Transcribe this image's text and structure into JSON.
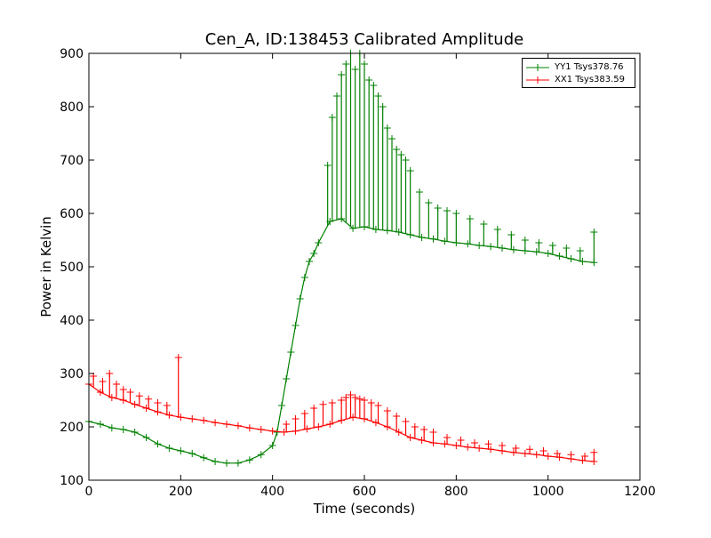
{
  "chart_data": {
    "type": "line",
    "title": "Cen_A, ID:138453 Calibrated Amplitude",
    "xlabel": "Time (seconds)",
    "ylabel": "Power in Kelvin",
    "xlim": [
      0,
      1200
    ],
    "ylim": [
      100,
      900
    ],
    "xticks": [
      0,
      200,
      400,
      600,
      800,
      1000,
      1200
    ],
    "yticks": [
      100,
      200,
      300,
      400,
      500,
      600,
      700,
      800,
      900
    ],
    "grid": false,
    "legend_placement": "top-right",
    "marker": "+",
    "series": [
      {
        "name": "YY1 Tsys378.76",
        "color": "#008000",
        "x": [
          0,
          25,
          50,
          75,
          100,
          125,
          150,
          175,
          200,
          225,
          250,
          275,
          300,
          325,
          350,
          375,
          400,
          410,
          420,
          430,
          440,
          450,
          460,
          470,
          480,
          490,
          500,
          525,
          550,
          575,
          600,
          625,
          650,
          675,
          700,
          725,
          750,
          775,
          800,
          825,
          850,
          875,
          900,
          925,
          950,
          975,
          1000,
          1025,
          1050,
          1075,
          1100
        ],
        "y": [
          210,
          205,
          198,
          195,
          190,
          180,
          168,
          160,
          155,
          150,
          142,
          135,
          132,
          132,
          138,
          148,
          165,
          190,
          240,
          290,
          340,
          390,
          440,
          480,
          510,
          525,
          545,
          585,
          590,
          572,
          575,
          570,
          568,
          565,
          560,
          555,
          552,
          548,
          545,
          543,
          540,
          538,
          535,
          532,
          530,
          528,
          525,
          520,
          515,
          510,
          508
        ],
        "spikes": [
          [
            520,
            690
          ],
          [
            530,
            780
          ],
          [
            540,
            820
          ],
          [
            550,
            860
          ],
          [
            560,
            880
          ],
          [
            570,
            900
          ],
          [
            580,
            870
          ],
          [
            590,
            900
          ],
          [
            600,
            880
          ],
          [
            610,
            850
          ],
          [
            620,
            840
          ],
          [
            630,
            820
          ],
          [
            640,
            800
          ],
          [
            650,
            760
          ],
          [
            660,
            740
          ],
          [
            670,
            720
          ],
          [
            680,
            710
          ],
          [
            690,
            700
          ],
          [
            700,
            680
          ],
          [
            720,
            640
          ],
          [
            740,
            620
          ],
          [
            760,
            610
          ],
          [
            780,
            605
          ],
          [
            800,
            600
          ],
          [
            830,
            590
          ],
          [
            860,
            580
          ],
          [
            890,
            570
          ],
          [
            920,
            560
          ],
          [
            950,
            550
          ],
          [
            980,
            545
          ],
          [
            1010,
            540
          ],
          [
            1040,
            535
          ],
          [
            1070,
            530
          ],
          [
            1100,
            565
          ]
        ]
      },
      {
        "name": "XX1 Tsys383.59",
        "color": "#ff0000",
        "x": [
          0,
          25,
          50,
          75,
          100,
          125,
          150,
          175,
          200,
          225,
          250,
          275,
          300,
          325,
          350,
          375,
          400,
          425,
          450,
          475,
          500,
          525,
          550,
          575,
          600,
          625,
          650,
          675,
          700,
          725,
          750,
          775,
          800,
          825,
          850,
          875,
          900,
          925,
          950,
          975,
          1000,
          1025,
          1050,
          1075,
          1100
        ],
        "y": [
          280,
          265,
          255,
          250,
          242,
          235,
          228,
          222,
          218,
          215,
          212,
          208,
          205,
          202,
          198,
          195,
          192,
          190,
          192,
          196,
          200,
          205,
          212,
          218,
          215,
          208,
          200,
          190,
          180,
          175,
          170,
          168,
          165,
          162,
          160,
          158,
          155,
          152,
          150,
          148,
          145,
          143,
          140,
          137,
          135
        ],
        "spikes": [
          [
            10,
            295
          ],
          [
            30,
            285
          ],
          [
            45,
            300
          ],
          [
            60,
            280
          ],
          [
            75,
            270
          ],
          [
            90,
            265
          ],
          [
            110,
            258
          ],
          [
            130,
            252
          ],
          [
            150,
            245
          ],
          [
            170,
            240
          ],
          [
            195,
            330
          ],
          [
            430,
            205
          ],
          [
            450,
            215
          ],
          [
            470,
            225
          ],
          [
            490,
            235
          ],
          [
            510,
            242
          ],
          [
            530,
            245
          ],
          [
            550,
            250
          ],
          [
            560,
            255
          ],
          [
            570,
            260
          ],
          [
            580,
            255
          ],
          [
            590,
            252
          ],
          [
            600,
            250
          ],
          [
            615,
            245
          ],
          [
            630,
            240
          ],
          [
            650,
            230
          ],
          [
            670,
            220
          ],
          [
            690,
            210
          ],
          [
            710,
            200
          ],
          [
            730,
            195
          ],
          [
            750,
            190
          ],
          [
            780,
            180
          ],
          [
            810,
            175
          ],
          [
            840,
            170
          ],
          [
            870,
            168
          ],
          [
            900,
            165
          ],
          [
            930,
            160
          ],
          [
            960,
            158
          ],
          [
            990,
            155
          ],
          [
            1020,
            150
          ],
          [
            1050,
            148
          ],
          [
            1080,
            145
          ],
          [
            1100,
            152
          ]
        ]
      }
    ]
  }
}
